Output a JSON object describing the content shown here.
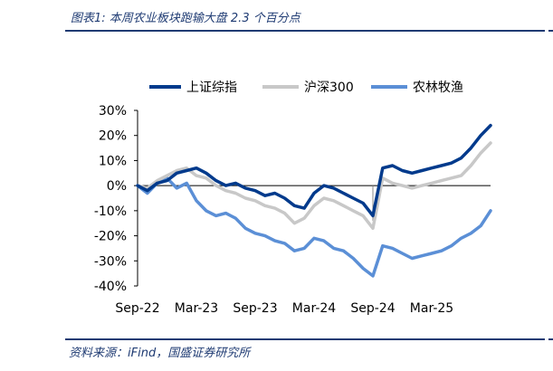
{
  "figure": {
    "title": "图表1:  本周农业板块跑输大盘 2.3 个百分点",
    "source": "资料来源：iFind，国盛证券研究所"
  },
  "chart_data": {
    "type": "line",
    "y_unit": "%",
    "ylim": [
      -40,
      30
    ],
    "yticks": [
      "30%",
      "20%",
      "10%",
      "0%",
      "-10%",
      "-20%",
      "-30%",
      "-40%"
    ],
    "xticks": [
      "Sep-22",
      "Mar-23",
      "Sep-23",
      "Mar-24",
      "Sep-24",
      "Mar-25"
    ],
    "x_dates": [
      "2022-09",
      "2022-10",
      "2022-11",
      "2022-12",
      "2023-01",
      "2023-02",
      "2023-03",
      "2023-04",
      "2023-05",
      "2023-06",
      "2023-07",
      "2023-08",
      "2023-09",
      "2023-10",
      "2023-11",
      "2023-12",
      "2024-01",
      "2024-02",
      "2024-03",
      "2024-04",
      "2024-05",
      "2024-06",
      "2024-07",
      "2024-08",
      "2024-09",
      "2024-10",
      "2024-11",
      "2024-12",
      "2025-01",
      "2025-02",
      "2025-03",
      "2025-04",
      "2025-05",
      "2025-06",
      "2025-07",
      "2025-08",
      "2025-09"
    ],
    "grid": false,
    "legend_position": "top",
    "series": [
      {
        "name": "上证综指",
        "color": "#003a8c",
        "values": [
          0,
          -2,
          1,
          2,
          5,
          6,
          7,
          5,
          2,
          0,
          1,
          -1,
          -2,
          -4,
          -3,
          -5,
          -8,
          -9,
          -3,
          0,
          -1,
          -3,
          -5,
          -7,
          -12,
          7,
          8,
          6,
          5,
          6,
          7,
          8,
          9,
          11,
          15,
          20,
          24
        ]
      },
      {
        "name": "沪深300",
        "color": "#c8c8c8",
        "values": [
          0,
          -1,
          2,
          4,
          6,
          7,
          4,
          3,
          0,
          -2,
          -3,
          -5,
          -6,
          -8,
          -9,
          -11,
          -15,
          -13,
          -8,
          -5,
          -6,
          -8,
          -10,
          -12,
          -17,
          3,
          1,
          0,
          -1,
          0,
          1,
          2,
          3,
          4,
          8,
          13,
          17
        ]
      },
      {
        "name": "农林牧渔",
        "color": "#5b8fd6",
        "values": [
          0,
          -3,
          1,
          3,
          -1,
          1,
          -6,
          -10,
          -12,
          -11,
          -13,
          -17,
          -19,
          -20,
          -22,
          -23,
          -26,
          -25,
          -21,
          -22,
          -25,
          -26,
          -29,
          -33,
          -36,
          -24,
          -25,
          -27,
          -29,
          -28,
          -27,
          -26,
          -24,
          -21,
          -19,
          -16,
          -10
        ]
      }
    ]
  }
}
